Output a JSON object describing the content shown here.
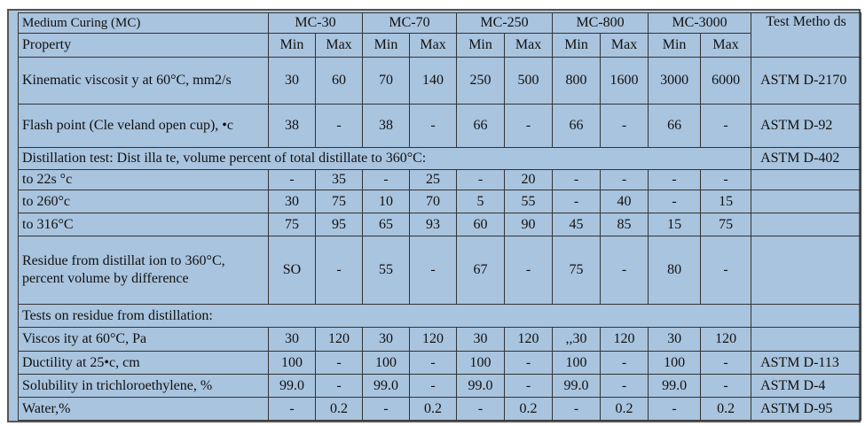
{
  "header": {
    "title": "Medium Curing (MC)",
    "grades": [
      "MC-30",
      "MC-70",
      "MC-250",
      "MC-800",
      "MC-3000"
    ],
    "method": "Test Metho ds",
    "property": "Property",
    "columns": [
      "Min",
      "Max",
      "Min",
      "Max",
      "Min",
      "Max",
      "Min",
      "Max",
      "Min",
      "Max"
    ]
  },
  "rows": [
    {
      "property": "Kinematic viscosit y at 60°C, mm2/s",
      "values": [
        "30",
        "60",
        "70",
        "140",
        "250",
        "500",
        "800",
        "1600",
        "3000",
        "6000"
      ],
      "method": "ASTM D-2170"
    },
    {
      "property": "Flash point (Cle veland open cup), •c",
      "values": [
        "38",
        "-",
        "38",
        "-",
        "66",
        "-",
        "66",
        "-",
        "66",
        "-"
      ],
      "method": "ASTM D-92"
    },
    {
      "property": "Distillation test: Dist illa te, volume percent of total distillate to 360°C:",
      "method": "ASTM D-402"
    },
    {
      "property": "to 22s °c",
      "values": [
        "-",
        "35",
        "-",
        "25",
        "-",
        "20",
        "-",
        "-",
        "-",
        "-"
      ]
    },
    {
      "property": "to 260°c",
      "values": [
        "30",
        "75",
        "10",
        "70",
        "5",
        "55",
        "-",
        "40",
        "-",
        "15"
      ]
    },
    {
      "property": "to 316°C",
      "values": [
        "75",
        "95",
        "65",
        "93",
        "60",
        "90",
        "45",
        "85",
        "15",
        "75"
      ]
    },
    {
      "property": "Residue from distillat ion to 360°C, percent volume by difference",
      "values": [
        "SO",
        "-",
        "55",
        "-",
        "67",
        "-",
        "75",
        "-",
        "80",
        "-"
      ]
    },
    {
      "property": "Tests on residue from distillation:"
    },
    {
      "property": "Viscos ity at 60°C, Pa",
      "values": [
        "30",
        "120",
        "30",
        "120",
        "30",
        "120",
        ",,30",
        "120",
        "30",
        "120"
      ]
    },
    {
      "property": "Ductility at 25•c, cm",
      "values": [
        "100",
        "-",
        "100",
        "-",
        "100",
        "-",
        "100",
        "-",
        "100",
        "-"
      ],
      "method": "ASTM D-113"
    },
    {
      "property": "Solubility in trichloroethylene, %",
      "values": [
        "99.0",
        "-",
        "99.0",
        "-",
        "99.0",
        "-",
        "99.0",
        "-",
        "99.0",
        "-"
      ],
      "method": "ASTM D-4"
    },
    {
      "property": "Water,%",
      "values": [
        "-",
        "0.2",
        "-",
        "0.2",
        "-",
        "0.2",
        "-",
        "0.2",
        "-",
        "0.2"
      ],
      "method": "ASTM D-95"
    }
  ]
}
